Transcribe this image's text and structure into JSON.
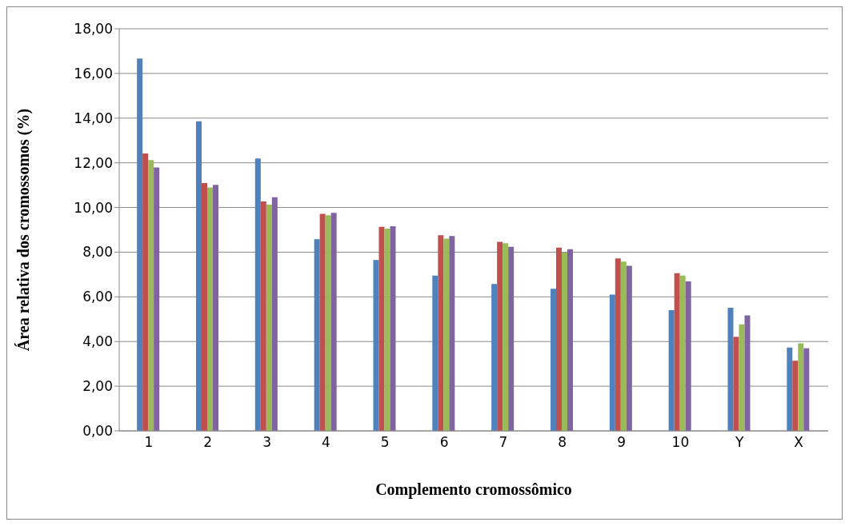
{
  "chart_data": {
    "type": "bar",
    "xlabel": "Complemento cromossômico",
    "ylabel": "Área relativa dos cromossomos (%)",
    "categories": [
      "1",
      "2",
      "3",
      "4",
      "5",
      "6",
      "7",
      "8",
      "9",
      "10",
      "Y",
      "X"
    ],
    "series": [
      {
        "color": "#4f81bd",
        "values": [
          16.67,
          13.86,
          12.19,
          8.58,
          7.65,
          6.95,
          6.58,
          6.36,
          6.1,
          5.4,
          5.51,
          3.73
        ]
      },
      {
        "color": "#c0504d",
        "values": [
          12.42,
          11.09,
          10.27,
          9.72,
          9.13,
          8.76,
          8.46,
          8.2,
          7.72,
          7.06,
          4.21,
          3.14
        ]
      },
      {
        "color": "#9bbb59",
        "values": [
          12.12,
          10.9,
          10.13,
          9.65,
          9.05,
          8.61,
          8.4,
          7.98,
          7.58,
          6.95,
          4.77,
          3.92
        ]
      },
      {
        "color": "#8064a2",
        "values": [
          11.79,
          11.01,
          10.46,
          9.76,
          9.16,
          8.72,
          8.24,
          8.13,
          7.39,
          6.69,
          5.17,
          3.7
        ]
      }
    ],
    "ylim": [
      0,
      18
    ],
    "yticks": [
      {
        "value": 0,
        "label": "0,00"
      },
      {
        "value": 2,
        "label": "2,00"
      },
      {
        "value": 4,
        "label": "4,00"
      },
      {
        "value": 6,
        "label": "6,00"
      },
      {
        "value": 8,
        "label": "8,00"
      },
      {
        "value": 10,
        "label": "10,00"
      },
      {
        "value": 12,
        "label": "12,00"
      },
      {
        "value": 14,
        "label": "14,00"
      },
      {
        "value": 16,
        "label": "16,00"
      },
      {
        "value": 18,
        "label": "18,00"
      }
    ],
    "grid": "y",
    "legend": false
  }
}
